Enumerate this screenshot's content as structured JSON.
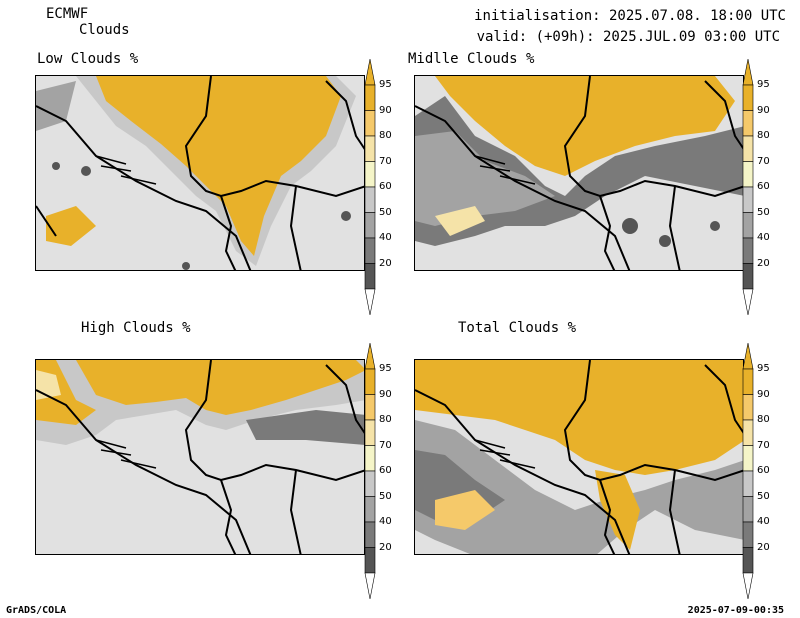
{
  "header": {
    "model": "ECMWF",
    "product": "Clouds",
    "initialisation": "initialisation: 2025.07.08. 18:00 UTC",
    "valid": "valid: (+09h): 2025.JUL.09 03:00 UTC"
  },
  "panels": [
    {
      "title": "Low Clouds %"
    },
    {
      "title": "Midlle Clouds %"
    },
    {
      "title": "High Clouds %"
    },
    {
      "title": "Total Clouds %"
    }
  ],
  "colorbar": {
    "levels": [
      "95",
      "90",
      "80",
      "70",
      "60",
      "50",
      "40",
      "20"
    ],
    "colors": [
      "#e8b12a",
      "#f5c96a",
      "#f5e3a8",
      "#f5f5c8",
      "#c8c8c8",
      "#a3a3a3",
      "#7a7a7a",
      "#555555"
    ]
  },
  "footer": {
    "left": "GrADS/COLA",
    "right": "2025-07-09-00:35"
  }
}
